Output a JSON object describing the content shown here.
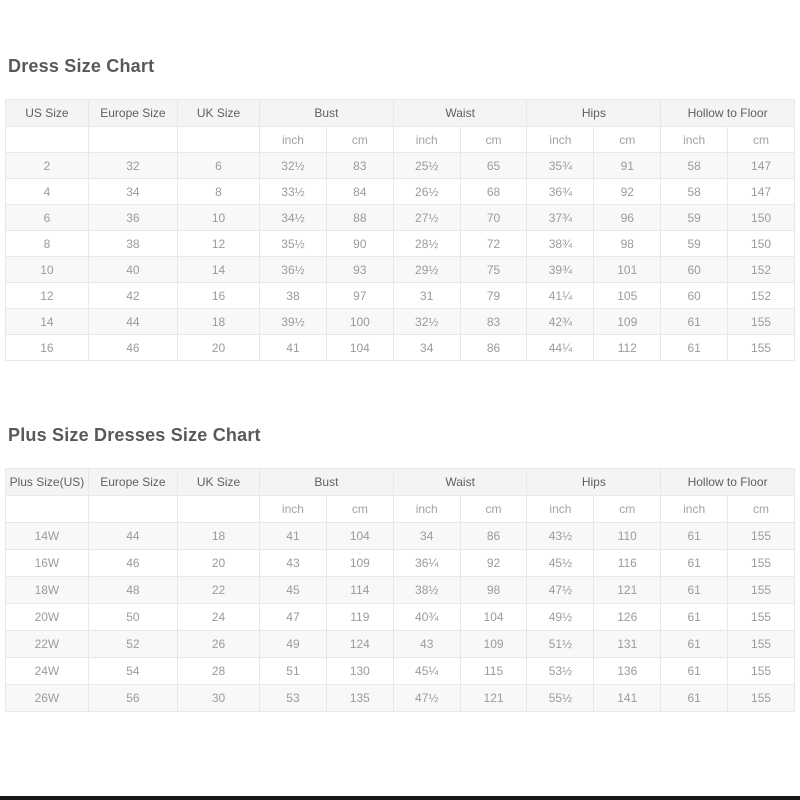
{
  "page": {
    "bottom_bar_color": "#161616",
    "accent_colors": {
      "header_bg": "#f4f4f4",
      "stripe_bg": "#f8f8f8",
      "border": "#e8e8e8",
      "title_text": "#595959",
      "data_text": "#9b9b9b"
    }
  },
  "tables": [
    {
      "title": "Dress Size Chart",
      "size_col_headers": [
        "US Size",
        "Europe Size",
        "UK Size"
      ],
      "measure_col_headers": [
        "Bust",
        "Waist",
        "Hips",
        "Hollow to Floor"
      ],
      "unit_labels": [
        "inch",
        "cm"
      ],
      "rows": [
        [
          "2",
          "32",
          "6",
          "32½",
          "83",
          "25½",
          "65",
          "35¾",
          "91",
          "58",
          "147"
        ],
        [
          "4",
          "34",
          "8",
          "33½",
          "84",
          "26½",
          "68",
          "36¾",
          "92",
          "58",
          "147"
        ],
        [
          "6",
          "36",
          "10",
          "34½",
          "88",
          "27½",
          "70",
          "37¾",
          "96",
          "59",
          "150"
        ],
        [
          "8",
          "38",
          "12",
          "35½",
          "90",
          "28½",
          "72",
          "38¾",
          "98",
          "59",
          "150"
        ],
        [
          "10",
          "40",
          "14",
          "36½",
          "93",
          "29½",
          "75",
          "39¾",
          "101",
          "60",
          "152"
        ],
        [
          "12",
          "42",
          "16",
          "38",
          "97",
          "31",
          "79",
          "41¼",
          "105",
          "60",
          "152"
        ],
        [
          "14",
          "44",
          "18",
          "39½",
          "100",
          "32½",
          "83",
          "42¾",
          "109",
          "61",
          "155"
        ],
        [
          "16",
          "46",
          "20",
          "41",
          "104",
          "34",
          "86",
          "44¼",
          "112",
          "61",
          "155"
        ]
      ]
    },
    {
      "title": "Plus Size Dresses Size Chart",
      "size_col_headers": [
        "Plus Size(US)",
        "Europe Size",
        "UK Size"
      ],
      "measure_col_headers": [
        "Bust",
        "Waist",
        "Hips",
        "Hollow to Floor"
      ],
      "unit_labels": [
        "inch",
        "cm"
      ],
      "rows": [
        [
          "14W",
          "44",
          "18",
          "41",
          "104",
          "34",
          "86",
          "43½",
          "110",
          "61",
          "155"
        ],
        [
          "16W",
          "46",
          "20",
          "43",
          "109",
          "36¼",
          "92",
          "45½",
          "116",
          "61",
          "155"
        ],
        [
          "18W",
          "48",
          "22",
          "45",
          "114",
          "38½",
          "98",
          "47½",
          "121",
          "61",
          "155"
        ],
        [
          "20W",
          "50",
          "24",
          "47",
          "119",
          "40¾",
          "104",
          "49½",
          "126",
          "61",
          "155"
        ],
        [
          "22W",
          "52",
          "26",
          "49",
          "124",
          "43",
          "109",
          "51½",
          "131",
          "61",
          "155"
        ],
        [
          "24W",
          "54",
          "28",
          "51",
          "130",
          "45¼",
          "115",
          "53½",
          "136",
          "61",
          "155"
        ],
        [
          "26W",
          "56",
          "30",
          "53",
          "135",
          "47½",
          "121",
          "55½",
          "141",
          "61",
          "155"
        ]
      ]
    }
  ]
}
